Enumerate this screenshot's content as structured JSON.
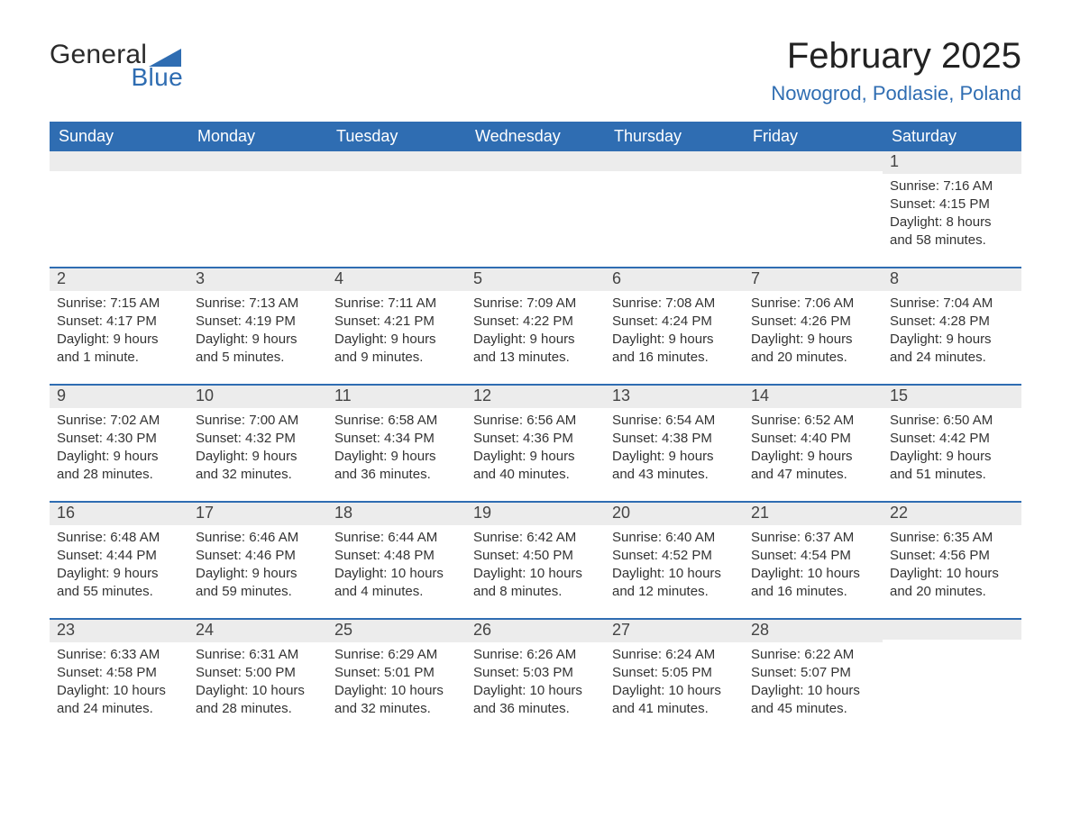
{
  "logo": {
    "word1": "General",
    "word2": "Blue"
  },
  "title": {
    "month": "February 2025",
    "location": "Nowogrod, Podlasie, Poland"
  },
  "colors": {
    "header_bg": "#2f6db2",
    "header_text": "#ffffff",
    "daynum_bg": "#ececec",
    "page_bg": "#ffffff",
    "blue_accent": "#2f6db2"
  },
  "weekdays": [
    "Sunday",
    "Monday",
    "Tuesday",
    "Wednesday",
    "Thursday",
    "Friday",
    "Saturday"
  ],
  "weeks": [
    [
      null,
      null,
      null,
      null,
      null,
      null,
      {
        "num": "1",
        "sunrise": "Sunrise: 7:16 AM",
        "sunset": "Sunset: 4:15 PM",
        "day1": "Daylight: 8 hours",
        "day2": "and 58 minutes."
      }
    ],
    [
      {
        "num": "2",
        "sunrise": "Sunrise: 7:15 AM",
        "sunset": "Sunset: 4:17 PM",
        "day1": "Daylight: 9 hours",
        "day2": "and 1 minute."
      },
      {
        "num": "3",
        "sunrise": "Sunrise: 7:13 AM",
        "sunset": "Sunset: 4:19 PM",
        "day1": "Daylight: 9 hours",
        "day2": "and 5 minutes."
      },
      {
        "num": "4",
        "sunrise": "Sunrise: 7:11 AM",
        "sunset": "Sunset: 4:21 PM",
        "day1": "Daylight: 9 hours",
        "day2": "and 9 minutes."
      },
      {
        "num": "5",
        "sunrise": "Sunrise: 7:09 AM",
        "sunset": "Sunset: 4:22 PM",
        "day1": "Daylight: 9 hours",
        "day2": "and 13 minutes."
      },
      {
        "num": "6",
        "sunrise": "Sunrise: 7:08 AM",
        "sunset": "Sunset: 4:24 PM",
        "day1": "Daylight: 9 hours",
        "day2": "and 16 minutes."
      },
      {
        "num": "7",
        "sunrise": "Sunrise: 7:06 AM",
        "sunset": "Sunset: 4:26 PM",
        "day1": "Daylight: 9 hours",
        "day2": "and 20 minutes."
      },
      {
        "num": "8",
        "sunrise": "Sunrise: 7:04 AM",
        "sunset": "Sunset: 4:28 PM",
        "day1": "Daylight: 9 hours",
        "day2": "and 24 minutes."
      }
    ],
    [
      {
        "num": "9",
        "sunrise": "Sunrise: 7:02 AM",
        "sunset": "Sunset: 4:30 PM",
        "day1": "Daylight: 9 hours",
        "day2": "and 28 minutes."
      },
      {
        "num": "10",
        "sunrise": "Sunrise: 7:00 AM",
        "sunset": "Sunset: 4:32 PM",
        "day1": "Daylight: 9 hours",
        "day2": "and 32 minutes."
      },
      {
        "num": "11",
        "sunrise": "Sunrise: 6:58 AM",
        "sunset": "Sunset: 4:34 PM",
        "day1": "Daylight: 9 hours",
        "day2": "and 36 minutes."
      },
      {
        "num": "12",
        "sunrise": "Sunrise: 6:56 AM",
        "sunset": "Sunset: 4:36 PM",
        "day1": "Daylight: 9 hours",
        "day2": "and 40 minutes."
      },
      {
        "num": "13",
        "sunrise": "Sunrise: 6:54 AM",
        "sunset": "Sunset: 4:38 PM",
        "day1": "Daylight: 9 hours",
        "day2": "and 43 minutes."
      },
      {
        "num": "14",
        "sunrise": "Sunrise: 6:52 AM",
        "sunset": "Sunset: 4:40 PM",
        "day1": "Daylight: 9 hours",
        "day2": "and 47 minutes."
      },
      {
        "num": "15",
        "sunrise": "Sunrise: 6:50 AM",
        "sunset": "Sunset: 4:42 PM",
        "day1": "Daylight: 9 hours",
        "day2": "and 51 minutes."
      }
    ],
    [
      {
        "num": "16",
        "sunrise": "Sunrise: 6:48 AM",
        "sunset": "Sunset: 4:44 PM",
        "day1": "Daylight: 9 hours",
        "day2": "and 55 minutes."
      },
      {
        "num": "17",
        "sunrise": "Sunrise: 6:46 AM",
        "sunset": "Sunset: 4:46 PM",
        "day1": "Daylight: 9 hours",
        "day2": "and 59 minutes."
      },
      {
        "num": "18",
        "sunrise": "Sunrise: 6:44 AM",
        "sunset": "Sunset: 4:48 PM",
        "day1": "Daylight: 10 hours",
        "day2": "and 4 minutes."
      },
      {
        "num": "19",
        "sunrise": "Sunrise: 6:42 AM",
        "sunset": "Sunset: 4:50 PM",
        "day1": "Daylight: 10 hours",
        "day2": "and 8 minutes."
      },
      {
        "num": "20",
        "sunrise": "Sunrise: 6:40 AM",
        "sunset": "Sunset: 4:52 PM",
        "day1": "Daylight: 10 hours",
        "day2": "and 12 minutes."
      },
      {
        "num": "21",
        "sunrise": "Sunrise: 6:37 AM",
        "sunset": "Sunset: 4:54 PM",
        "day1": "Daylight: 10 hours",
        "day2": "and 16 minutes."
      },
      {
        "num": "22",
        "sunrise": "Sunrise: 6:35 AM",
        "sunset": "Sunset: 4:56 PM",
        "day1": "Daylight: 10 hours",
        "day2": "and 20 minutes."
      }
    ],
    [
      {
        "num": "23",
        "sunrise": "Sunrise: 6:33 AM",
        "sunset": "Sunset: 4:58 PM",
        "day1": "Daylight: 10 hours",
        "day2": "and 24 minutes."
      },
      {
        "num": "24",
        "sunrise": "Sunrise: 6:31 AM",
        "sunset": "Sunset: 5:00 PM",
        "day1": "Daylight: 10 hours",
        "day2": "and 28 minutes."
      },
      {
        "num": "25",
        "sunrise": "Sunrise: 6:29 AM",
        "sunset": "Sunset: 5:01 PM",
        "day1": "Daylight: 10 hours",
        "day2": "and 32 minutes."
      },
      {
        "num": "26",
        "sunrise": "Sunrise: 6:26 AM",
        "sunset": "Sunset: 5:03 PM",
        "day1": "Daylight: 10 hours",
        "day2": "and 36 minutes."
      },
      {
        "num": "27",
        "sunrise": "Sunrise: 6:24 AM",
        "sunset": "Sunset: 5:05 PM",
        "day1": "Daylight: 10 hours",
        "day2": "and 41 minutes."
      },
      {
        "num": "28",
        "sunrise": "Sunrise: 6:22 AM",
        "sunset": "Sunset: 5:07 PM",
        "day1": "Daylight: 10 hours",
        "day2": "and 45 minutes."
      },
      null
    ]
  ]
}
